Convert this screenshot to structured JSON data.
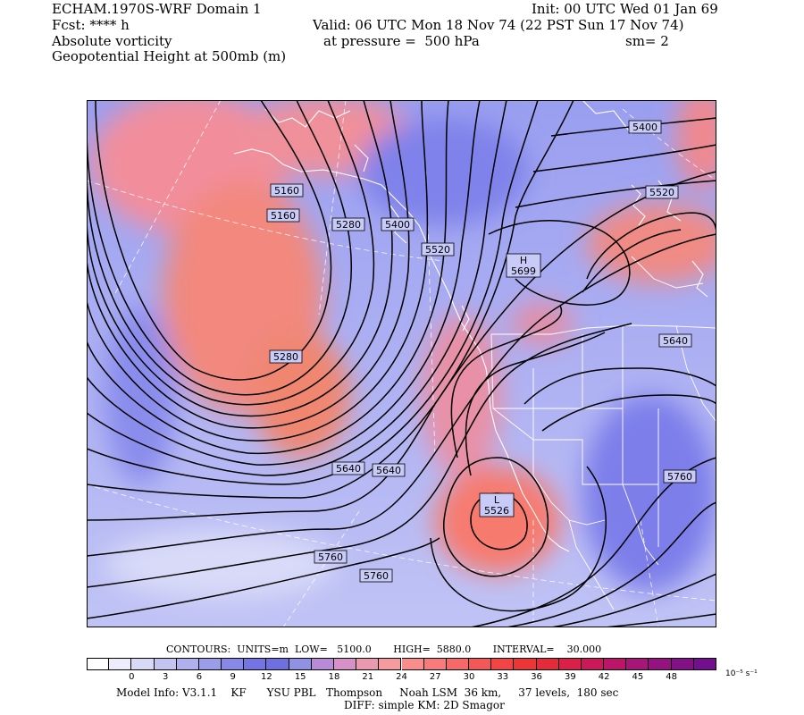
{
  "header": {
    "model_title": "ECHAM.1970S-WRF Domain 1",
    "init": "Init: 00 UTC Wed 01 Jan 69",
    "fcst": "Fcst: **** h",
    "valid": "Valid: 06 UTC Mon 18 Nov 74 (22 PST Sun 17 Nov 74)",
    "field1": "Absolute vorticity",
    "pressure": "at pressure =  500 hPa",
    "sm": "sm= 2",
    "field2": "Geopotential Height at 500mb (m)"
  },
  "contour_labels": [
    {
      "text": "5400"
    },
    {
      "text": "5520"
    },
    {
      "text": "5160"
    },
    {
      "text": "5160"
    },
    {
      "text": "5280"
    },
    {
      "text": "5400"
    },
    {
      "text": "5520"
    },
    {
      "text": "H\n5699"
    },
    {
      "text": "5640"
    },
    {
      "text": "5280"
    },
    {
      "text": "5640"
    },
    {
      "text": "5640"
    },
    {
      "text": "5760"
    },
    {
      "text": "L\n5526"
    },
    {
      "text": "5760"
    },
    {
      "text": "5760"
    }
  ],
  "contour_info": "CONTOURS:  UNITS=m  LOW=   5100.0       HIGH=  5880.0       INTERVAL=    30.000",
  "colorbar": {
    "ticks": [
      "0",
      "3",
      "6",
      "9",
      "12",
      "15",
      "18",
      "21",
      "24",
      "27",
      "30",
      "33",
      "36",
      "39",
      "42",
      "45",
      "48"
    ],
    "units": "10⁻⁵ s⁻¹",
    "colors": [
      "#ffffff",
      "#ececfb",
      "#d8d8f7",
      "#c4c4f3",
      "#b0b0ef",
      "#9c9cec",
      "#8888e8",
      "#7474e4",
      "#6f6fe0",
      "#9090e4",
      "#b88ad8",
      "#d890c8",
      "#ec98b0",
      "#f69aa0",
      "#fa8c8c",
      "#f87a7a",
      "#f76868",
      "#f55656",
      "#f24444",
      "#ee3535",
      "#e62a3a",
      "#da2048",
      "#cc1858",
      "#bb1468",
      "#a81478",
      "#961280",
      "#841088",
      "#740e90"
    ]
  },
  "model_info": "Model Info: V3.1.1    KF      YSU PBL   Thompson     Noah LSM  36 km,     37 levels,  180 sec",
  "diff_info": "DIFF: simple KM: 2D Smagor"
}
